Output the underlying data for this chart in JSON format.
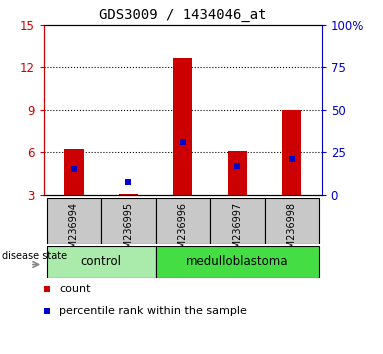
{
  "title": "GDS3009 / 1434046_at",
  "samples": [
    "GSM236994",
    "GSM236995",
    "GSM236996",
    "GSM236997",
    "GSM236998"
  ],
  "red_bar_heights": [
    6.2,
    3.05,
    12.65,
    6.1,
    9.0
  ],
  "blue_marker_values": [
    4.8,
    3.9,
    6.7,
    5.0,
    5.5
  ],
  "ylim_left": [
    3,
    15
  ],
  "ylim_right": [
    0,
    100
  ],
  "yticks_left": [
    3,
    6,
    9,
    12,
    15
  ],
  "yticks_right": [
    0,
    25,
    50,
    75,
    100
  ],
  "ytick_labels_right": [
    "0",
    "25",
    "50",
    "75",
    "100%"
  ],
  "red_color": "#CC0000",
  "blue_color": "#0000CC",
  "bar_width": 0.35,
  "group_configs": [
    {
      "label": "control",
      "start": 0,
      "end": 1,
      "color": "#AAEAAA"
    },
    {
      "label": "medulloblastoma",
      "start": 2,
      "end": 4,
      "color": "#44DD44"
    }
  ],
  "label_color_left": "#CC0000",
  "label_color_right": "#0000CC",
  "disease_state_label": "disease state",
  "legend_count": "count",
  "legend_percentile": "percentile rank within the sample",
  "gray_color": "#C8C8C8",
  "background_color": "#ffffff",
  "bar_bottom": 3.0,
  "grid_ticks": [
    6,
    9,
    12
  ]
}
